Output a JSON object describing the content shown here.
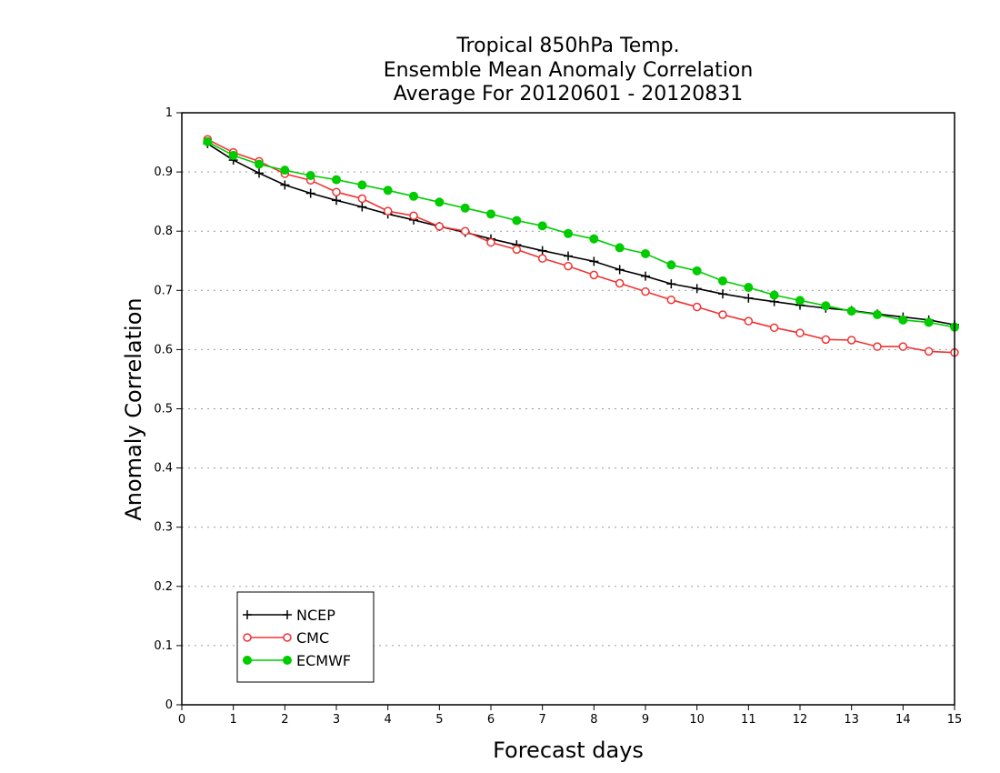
{
  "chart_data": {
    "type": "line",
    "title_lines": [
      "Tropical 850hPa Temp.",
      "Ensemble Mean Anomaly Correlation",
      "Average For 20120601 - 20120831"
    ],
    "xlabel": "Forecast days",
    "ylabel": "Anomaly Correlation",
    "xlim": [
      0,
      15
    ],
    "ylim": [
      0,
      1
    ],
    "xticks": [
      "0",
      "1",
      "2",
      "3",
      "4",
      "5",
      "6",
      "7",
      "8",
      "9",
      "10",
      "11",
      "12",
      "13",
      "14",
      "15"
    ],
    "yticks": [
      "0",
      "0.1",
      "0.2",
      "0.3",
      "0.4",
      "0.5",
      "0.6",
      "0.7",
      "0.8",
      "0.9",
      "1"
    ],
    "grid": "horizontal dotted",
    "legend_position": "bottom-left",
    "x": [
      0.5,
      1,
      1.5,
      2,
      2.5,
      3,
      3.5,
      4,
      4.5,
      5,
      5.5,
      6,
      6.5,
      7,
      7.5,
      8,
      8.5,
      9,
      9.5,
      10,
      10.5,
      11,
      11.5,
      12,
      12.5,
      13,
      13.5,
      14,
      14.5,
      15
    ],
    "series": [
      {
        "name": "NCEP",
        "color": "#000000",
        "marker": "plus",
        "values": [
          0.948,
          0.92,
          0.898,
          0.878,
          0.864,
          0.852,
          0.841,
          0.829,
          0.819,
          0.808,
          0.798,
          0.787,
          0.777,
          0.767,
          0.758,
          0.749,
          0.735,
          0.724,
          0.711,
          0.703,
          0.694,
          0.687,
          0.681,
          0.675,
          0.67,
          0.666,
          0.66,
          0.655,
          0.65,
          0.642
        ]
      },
      {
        "name": "CMC",
        "color": "#ee3333",
        "marker": "open-circle",
        "values": [
          0.955,
          0.933,
          0.918,
          0.897,
          0.886,
          0.866,
          0.855,
          0.834,
          0.826,
          0.808,
          0.8,
          0.781,
          0.769,
          0.754,
          0.741,
          0.726,
          0.712,
          0.698,
          0.684,
          0.672,
          0.659,
          0.648,
          0.637,
          0.628,
          0.617,
          0.616,
          0.605,
          0.605,
          0.597,
          0.595
        ]
      },
      {
        "name": "ECMWF",
        "color": "#00cc00",
        "marker": "filled-circle",
        "values": [
          0.951,
          0.928,
          0.913,
          0.903,
          0.894,
          0.887,
          0.878,
          0.869,
          0.859,
          0.849,
          0.839,
          0.829,
          0.818,
          0.809,
          0.796,
          0.787,
          0.772,
          0.762,
          0.743,
          0.733,
          0.716,
          0.705,
          0.692,
          0.683,
          0.674,
          0.665,
          0.659,
          0.65,
          0.646,
          0.638
        ]
      }
    ]
  }
}
